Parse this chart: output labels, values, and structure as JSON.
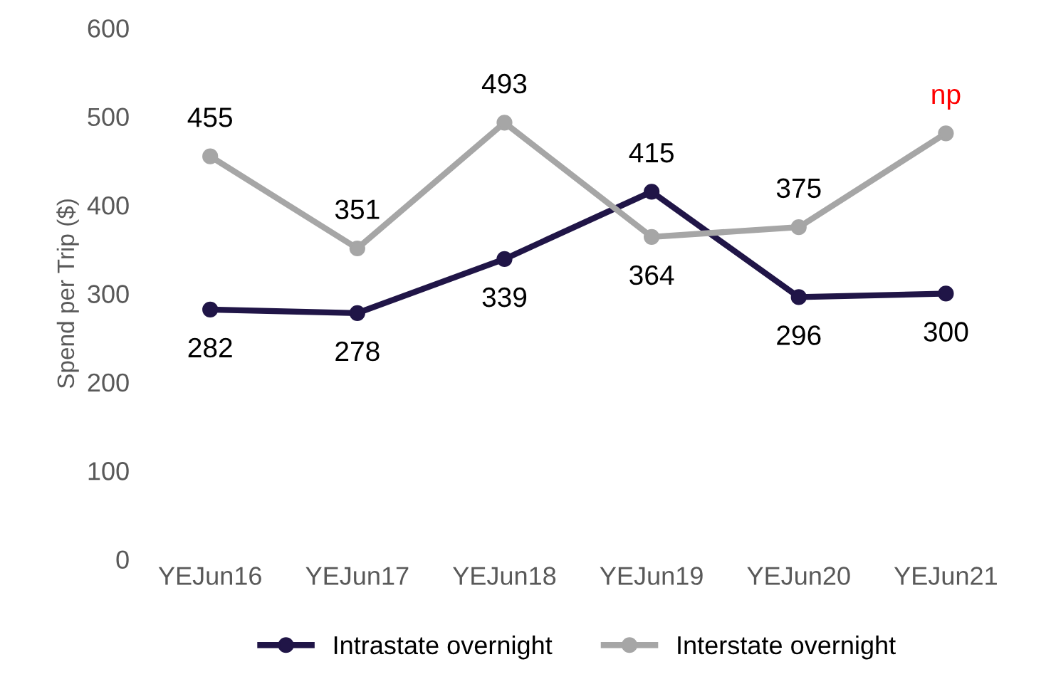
{
  "chart_data": {
    "type": "line",
    "ylabel": "Spend per Trip ($)",
    "categories": [
      "YEJun16",
      "YEJun17",
      "YEJun18",
      "YEJun19",
      "YEJun20",
      "YEJun21"
    ],
    "series": [
      {
        "name": "Intrastate overnight",
        "color": "#201547",
        "values": [
          282,
          278,
          339,
          415,
          296,
          300
        ],
        "value_labels": [
          "282",
          "278",
          "339",
          "415",
          "296",
          "300"
        ]
      },
      {
        "name": "Interstate overnight",
        "color": "#a6a6a6",
        "values": [
          455,
          351,
          493,
          364,
          375,
          481
        ],
        "value_labels": [
          "455",
          "351",
          "493",
          "364",
          "375",
          null
        ]
      }
    ],
    "annotations": [
      {
        "text": "np",
        "x": "YEJun21",
        "y": 481
      }
    ],
    "ylim": [
      0,
      600
    ],
    "yticks": [
      0,
      100,
      200,
      300,
      400,
      500,
      600
    ],
    "grid": false,
    "legend": "bottom",
    "marker": "circle",
    "line_style": "solid"
  }
}
